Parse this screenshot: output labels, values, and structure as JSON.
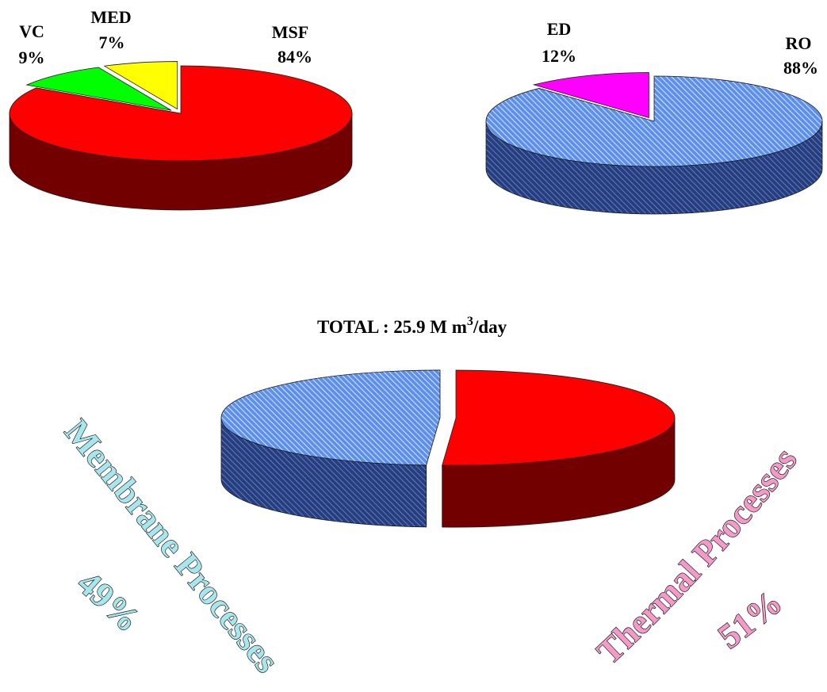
{
  "colors": {
    "MSF": "#ff0000",
    "VC": "#00ff00",
    "MED": "#ffff00",
    "RO": "#5b8ff0",
    "ED": "#ff00ff",
    "thermal": "#ff0000",
    "membrane": "#5b8ff0",
    "membrane_word": "#a8e6ee",
    "thermal_word": "#f49ac8"
  },
  "total": {
    "prefix": "TOTAL : 25.9 M m",
    "superscript": "3",
    "suffix": "/day"
  },
  "curved_labels": {
    "membrane_title": "Membrane Processes",
    "membrane_pct": "49%",
    "thermal_title": "Thermal Processes",
    "thermal_pct": "51%"
  },
  "chart_data": [
    {
      "type": "pie",
      "style": "3d-exploded",
      "slices": [
        {
          "label": "MSF",
          "pct_label": "84%",
          "value": 84,
          "color": "#ff0000"
        },
        {
          "label": "VC",
          "pct_label": "9%",
          "value": 9,
          "color": "#00ff00"
        },
        {
          "label": "MED",
          "pct_label": "7%",
          "value": 7,
          "color": "#ffff00"
        }
      ]
    },
    {
      "type": "pie",
      "style": "3d-exploded",
      "slices": [
        {
          "label": "RO",
          "pct_label": "88%",
          "value": 88,
          "color": "#5b8ff0",
          "hatched": true
        },
        {
          "label": "ED",
          "pct_label": "12%",
          "value": 12,
          "color": "#ff00ff"
        }
      ]
    },
    {
      "type": "pie",
      "style": "3d-exploded",
      "title": "TOTAL : 25.9 M m3/day",
      "slices": [
        {
          "label": "Thermal Processes",
          "pct_label": "51%",
          "value": 51,
          "color": "#ff0000"
        },
        {
          "label": "Membrane Processes",
          "pct_label": "49%",
          "value": 49,
          "color": "#5b8ff0",
          "hatched": true
        }
      ]
    }
  ]
}
